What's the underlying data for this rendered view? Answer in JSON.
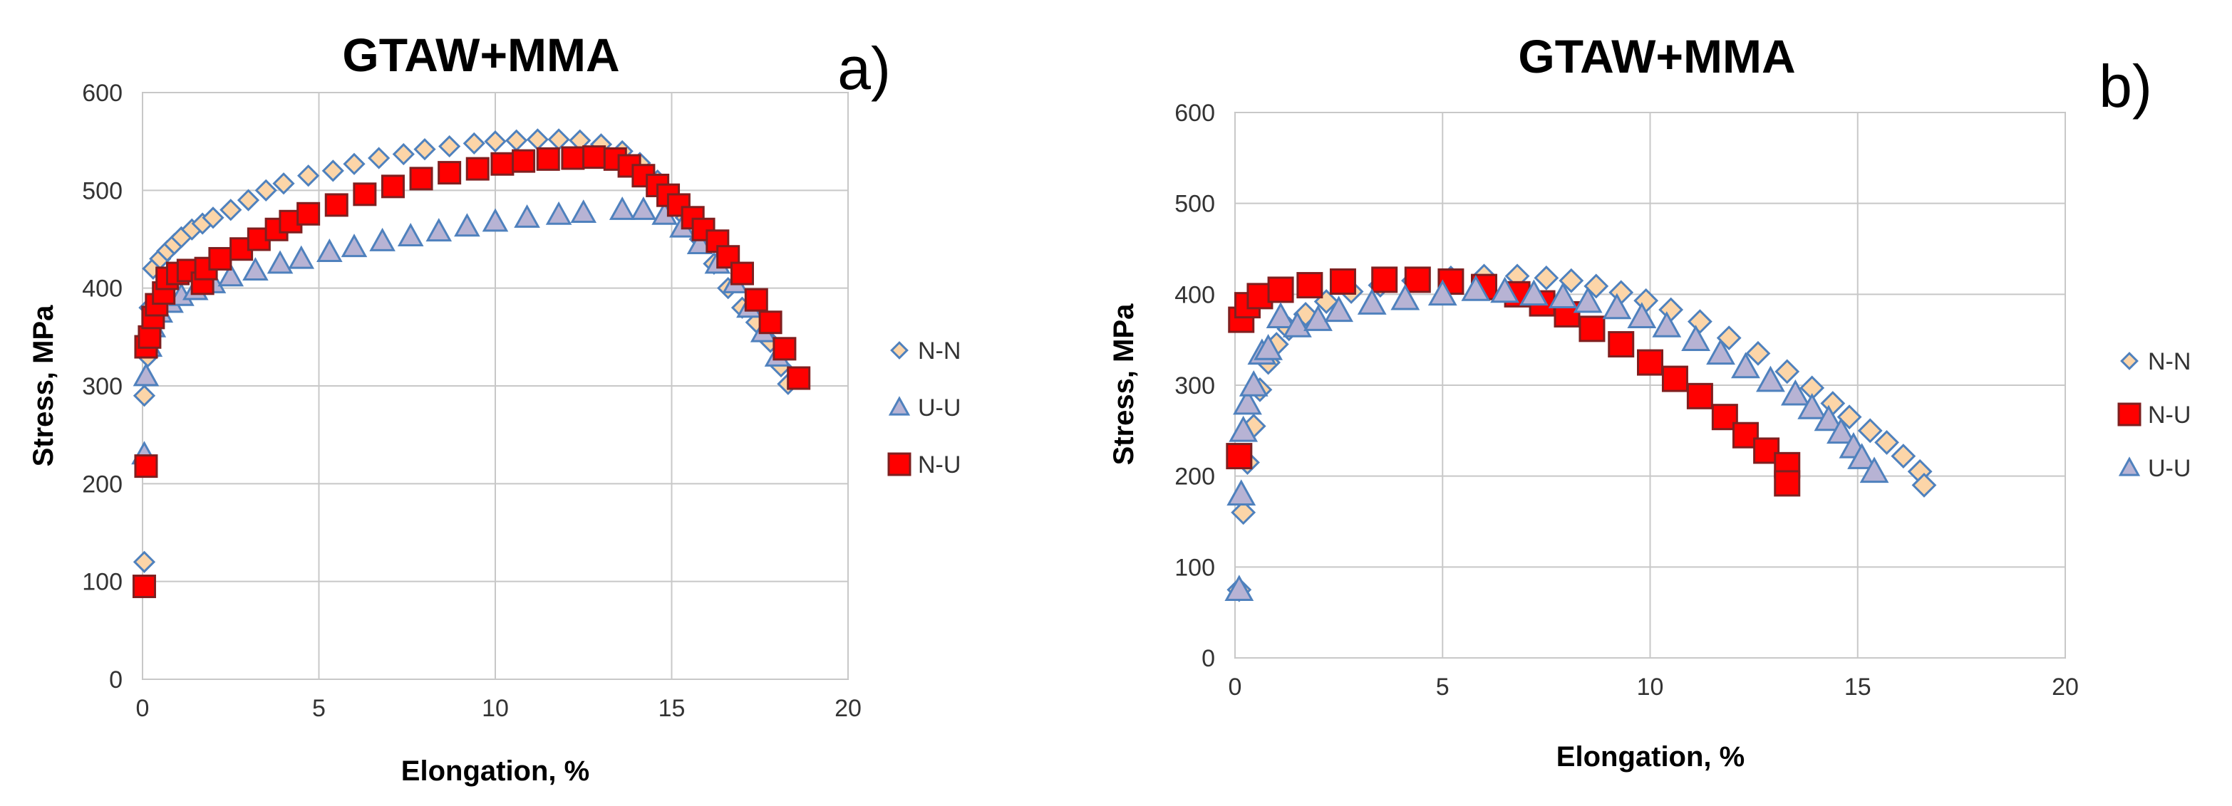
{
  "chart_data": [
    {
      "panel_label": "a)",
      "type": "scatter",
      "title": "GTAW+MMA",
      "xlabel": "Elongation, %",
      "ylabel": "Stress, MPa",
      "xlim": [
        0,
        20
      ],
      "ylim": [
        0,
        600
      ],
      "xticks": [
        0,
        5,
        10,
        15,
        20
      ],
      "yticks": [
        0,
        100,
        200,
        300,
        400,
        500,
        600
      ],
      "grid": true,
      "legend_position": "right",
      "series": [
        {
          "name": "N-N",
          "marker": "diamond",
          "color": "#fcd5a8",
          "edge": "#4f81bd",
          "points": [
            [
              0.05,
              120
            ],
            [
              0.05,
              290
            ],
            [
              0.15,
              330
            ],
            [
              0.2,
              380
            ],
            [
              0.3,
              420
            ],
            [
              0.5,
              430
            ],
            [
              0.7,
              438
            ],
            [
              0.9,
              445
            ],
            [
              1.1,
              452
            ],
            [
              1.4,
              460
            ],
            [
              1.7,
              466
            ],
            [
              2.0,
              472
            ],
            [
              2.5,
              480
            ],
            [
              3.0,
              490
            ],
            [
              3.5,
              500
            ],
            [
              4.0,
              507
            ],
            [
              4.7,
              515
            ],
            [
              5.4,
              520
            ],
            [
              6.0,
              527
            ],
            [
              6.7,
              533
            ],
            [
              7.4,
              537
            ],
            [
              8.0,
              542
            ],
            [
              8.7,
              545
            ],
            [
              9.4,
              548
            ],
            [
              10.0,
              550
            ],
            [
              10.6,
              551
            ],
            [
              11.2,
              552
            ],
            [
              11.8,
              552
            ],
            [
              12.4,
              551
            ],
            [
              13.0,
              547
            ],
            [
              13.6,
              540
            ],
            [
              14.1,
              528
            ],
            [
              14.6,
              510
            ],
            [
              15.0,
              490
            ],
            [
              15.4,
              472
            ],
            [
              15.8,
              450
            ],
            [
              16.2,
              425
            ],
            [
              16.6,
              400
            ],
            [
              17.0,
              380
            ],
            [
              17.4,
              365
            ],
            [
              17.8,
              345
            ],
            [
              18.1,
              320
            ],
            [
              18.3,
              302
            ]
          ]
        },
        {
          "name": "U-U",
          "marker": "triangle",
          "color": "#b7b3d4",
          "edge": "#4f81bd",
          "points": [
            [
              0.05,
              230
            ],
            [
              0.1,
              310
            ],
            [
              0.2,
              340
            ],
            [
              0.3,
              360
            ],
            [
              0.5,
              375
            ],
            [
              0.8,
              385
            ],
            [
              1.1,
              392
            ],
            [
              1.5,
              398
            ],
            [
              2.0,
              405
            ],
            [
              2.5,
              412
            ],
            [
              3.2,
              418
            ],
            [
              3.9,
              425
            ],
            [
              4.5,
              430
            ],
            [
              5.3,
              437
            ],
            [
              6.0,
              442
            ],
            [
              6.8,
              448
            ],
            [
              7.6,
              453
            ],
            [
              8.4,
              458
            ],
            [
              9.2,
              463
            ],
            [
              10.0,
              468
            ],
            [
              10.9,
              472
            ],
            [
              11.8,
              475
            ],
            [
              12.5,
              477
            ],
            [
              13.6,
              480
            ],
            [
              14.2,
              480
            ],
            [
              14.8,
              475
            ],
            [
              15.3,
              462
            ],
            [
              15.8,
              445
            ],
            [
              16.3,
              425
            ],
            [
              16.8,
              405
            ],
            [
              17.2,
              380
            ],
            [
              17.6,
              355
            ],
            [
              18.0,
              330
            ]
          ]
        },
        {
          "name": "N-U",
          "marker": "square",
          "color": "#ff0000",
          "edge": "#7f1f1f",
          "points": [
            [
              0.05,
              95
            ],
            [
              0.1,
              218
            ],
            [
              0.1,
              340
            ],
            [
              0.2,
              350
            ],
            [
              0.3,
              370
            ],
            [
              0.4,
              383
            ],
            [
              0.6,
              395
            ],
            [
              0.7,
              410
            ],
            [
              1.0,
              415
            ],
            [
              1.3,
              418
            ],
            [
              1.7,
              405
            ],
            [
              1.8,
              420
            ],
            [
              2.2,
              430
            ],
            [
              2.8,
              440
            ],
            [
              3.3,
              450
            ],
            [
              3.8,
              460
            ],
            [
              4.2,
              468
            ],
            [
              4.7,
              476
            ],
            [
              5.5,
              485
            ],
            [
              6.3,
              496
            ],
            [
              7.1,
              504
            ],
            [
              7.9,
              512
            ],
            [
              8.7,
              518
            ],
            [
              9.5,
              522
            ],
            [
              10.2,
              527
            ],
            [
              10.8,
              530
            ],
            [
              11.5,
              532
            ],
            [
              12.2,
              533
            ],
            [
              12.8,
              534
            ],
            [
              13.4,
              532
            ],
            [
              13.8,
              525
            ],
            [
              14.2,
              515
            ],
            [
              14.6,
              505
            ],
            [
              14.9,
              495
            ],
            [
              15.2,
              485
            ],
            [
              15.6,
              472
            ],
            [
              15.9,
              460
            ],
            [
              16.3,
              448
            ],
            [
              16.6,
              432
            ],
            [
              17.0,
              415
            ],
            [
              17.4,
              388
            ],
            [
              17.8,
              365
            ],
            [
              18.2,
              338
            ],
            [
              18.6,
              308
            ]
          ]
        }
      ]
    },
    {
      "panel_label": "b)",
      "type": "scatter",
      "title": "GTAW+MMA",
      "xlabel": "Elongation, %",
      "ylabel": "Stress, MPa",
      "xlim": [
        0,
        20
      ],
      "ylim": [
        0,
        600
      ],
      "xticks": [
        0,
        5,
        10,
        15,
        20
      ],
      "yticks": [
        0,
        100,
        200,
        300,
        400,
        500,
        600
      ],
      "grid": true,
      "legend_position": "right",
      "series": [
        {
          "name": "N-N",
          "marker": "diamond",
          "color": "#fcd5a8",
          "edge": "#4f81bd",
          "points": [
            [
              0.1,
              75
            ],
            [
              0.2,
              160
            ],
            [
              0.3,
              215
            ],
            [
              0.45,
              255
            ],
            [
              0.6,
              295
            ],
            [
              0.8,
              325
            ],
            [
              1.0,
              345
            ],
            [
              1.3,
              362
            ],
            [
              1.7,
              378
            ],
            [
              2.2,
              392
            ],
            [
              2.8,
              403
            ],
            [
              3.5,
              410
            ],
            [
              4.3,
              415
            ],
            [
              5.2,
              418
            ],
            [
              6.0,
              420
            ],
            [
              6.8,
              420
            ],
            [
              7.5,
              418
            ],
            [
              8.1,
              415
            ],
            [
              8.7,
              409
            ],
            [
              9.3,
              402
            ],
            [
              9.9,
              393
            ],
            [
              10.5,
              383
            ],
            [
              11.2,
              370
            ],
            [
              11.9,
              352
            ],
            [
              12.6,
              335
            ],
            [
              13.3,
              315
            ],
            [
              13.9,
              297
            ],
            [
              14.4,
              280
            ],
            [
              14.8,
              265
            ],
            [
              15.3,
              250
            ],
            [
              15.7,
              237
            ],
            [
              16.1,
              222
            ],
            [
              16.5,
              205
            ],
            [
              16.6,
              190
            ]
          ]
        },
        {
          "name": "N-U",
          "marker": "square",
          "color": "#ff0000",
          "edge": "#7f1f1f",
          "points": [
            [
              0.1,
              222
            ],
            [
              0.15,
              372
            ],
            [
              0.3,
              388
            ],
            [
              0.6,
              398
            ],
            [
              1.1,
              405
            ],
            [
              1.8,
              410
            ],
            [
              2.6,
              414
            ],
            [
              3.6,
              416
            ],
            [
              4.4,
              416
            ],
            [
              5.2,
              414
            ],
            [
              6.0,
              408
            ],
            [
              6.8,
              400
            ],
            [
              7.4,
              390
            ],
            [
              8.0,
              378
            ],
            [
              8.6,
              362
            ],
            [
              9.3,
              345
            ],
            [
              10.0,
              325
            ],
            [
              10.6,
              307
            ],
            [
              11.2,
              288
            ],
            [
              11.8,
              265
            ],
            [
              12.3,
              245
            ],
            [
              12.8,
              228
            ],
            [
              13.3,
              212
            ],
            [
              13.3,
              192
            ]
          ]
        },
        {
          "name": "U-U",
          "marker": "triangle",
          "color": "#b7b3d4",
          "edge": "#4f81bd",
          "points": [
            [
              0.1,
              75
            ],
            [
              0.15,
              180
            ],
            [
              0.2,
              250
            ],
            [
              0.3,
              280
            ],
            [
              0.45,
              300
            ],
            [
              0.65,
              335
            ],
            [
              0.8,
              340
            ],
            [
              1.1,
              375
            ],
            [
              1.5,
              365
            ],
            [
              2.0,
              372
            ],
            [
              2.5,
              382
            ],
            [
              3.3,
              390
            ],
            [
              4.1,
              395
            ],
            [
              5.0,
              400
            ],
            [
              5.8,
              405
            ],
            [
              6.5,
              403
            ],
            [
              7.2,
              400
            ],
            [
              7.9,
              397
            ],
            [
              8.5,
              392
            ],
            [
              9.2,
              385
            ],
            [
              9.8,
              375
            ],
            [
              10.4,
              365
            ],
            [
              11.1,
              350
            ],
            [
              11.7,
              335
            ],
            [
              12.3,
              320
            ],
            [
              12.9,
              305
            ],
            [
              13.5,
              290
            ],
            [
              13.9,
              275
            ],
            [
              14.3,
              262
            ],
            [
              14.6,
              248
            ],
            [
              14.9,
              232
            ],
            [
              15.1,
              220
            ],
            [
              15.4,
              205
            ]
          ]
        }
      ]
    }
  ]
}
